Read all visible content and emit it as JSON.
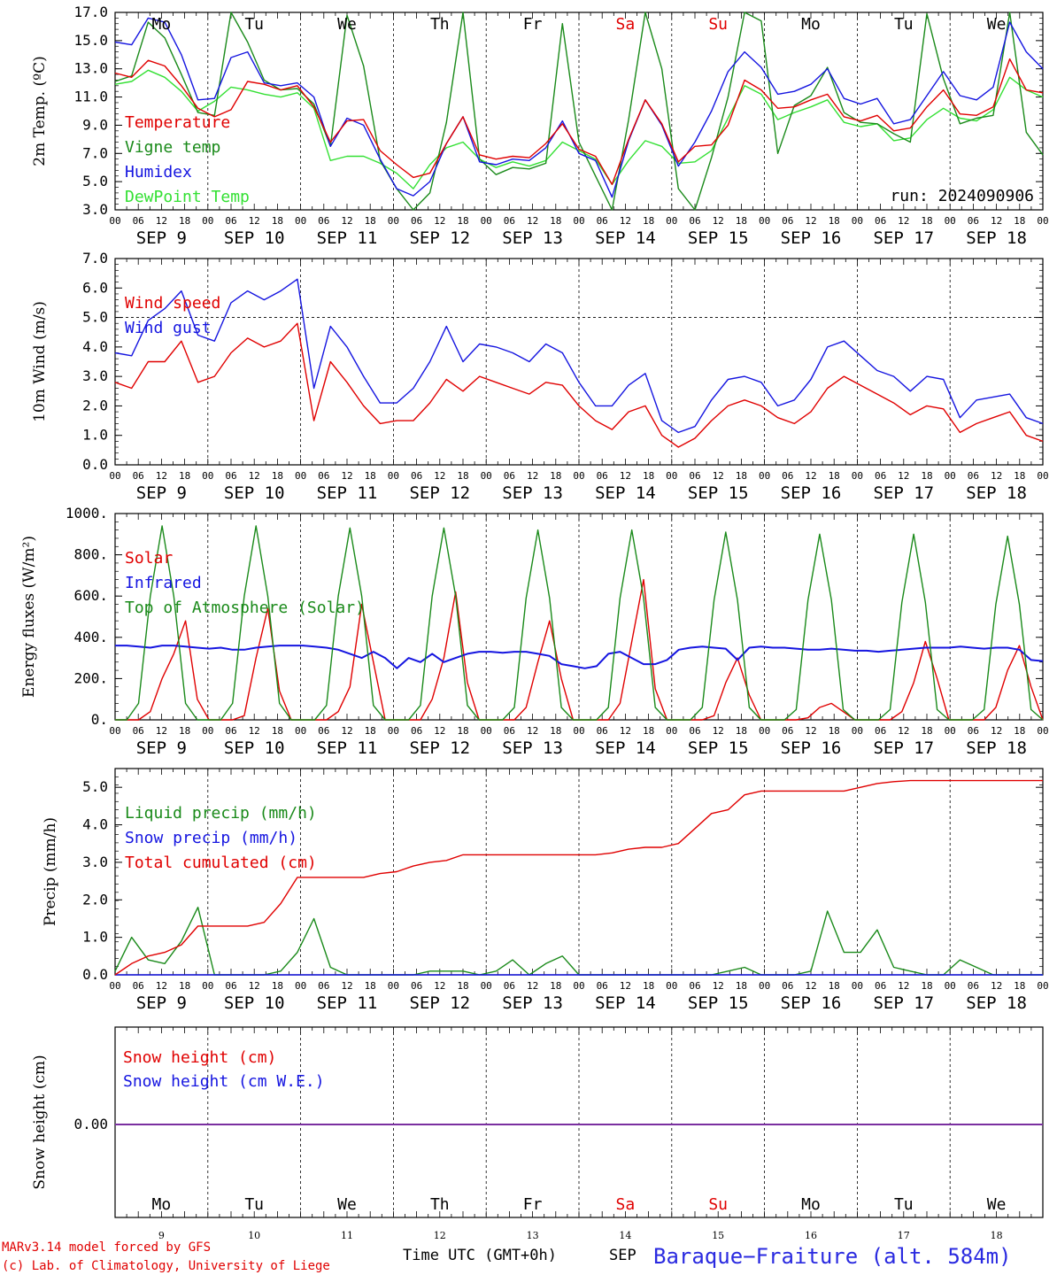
{
  "run_label": "run: 2024090906",
  "hour_ticks": [
    "00",
    "06",
    "12",
    "18"
  ],
  "final_hour": "00",
  "days": [
    {
      "abbr": "Mo",
      "date": "SEP  9",
      "num": "9",
      "weekend": false
    },
    {
      "abbr": "Tu",
      "date": "SEP 10",
      "num": "10",
      "weekend": false
    },
    {
      "abbr": "We",
      "date": "SEP 11",
      "num": "11",
      "weekend": false
    },
    {
      "abbr": "Th",
      "date": "SEP 12",
      "num": "12",
      "weekend": false
    },
    {
      "abbr": "Fr",
      "date": "SEP 13",
      "num": "13",
      "weekend": false
    },
    {
      "abbr": "Sa",
      "date": "SEP 14",
      "num": "14",
      "weekend": true
    },
    {
      "abbr": "Su",
      "date": "SEP 15",
      "num": "15",
      "weekend": true
    },
    {
      "abbr": "Mo",
      "date": "SEP 16",
      "num": "16",
      "weekend": false
    },
    {
      "abbr": "Tu",
      "date": "SEP 17",
      "num": "17",
      "weekend": false
    },
    {
      "abbr": "We",
      "date": "SEP 18",
      "num": "18",
      "weekend": false
    }
  ],
  "colors": {
    "red": "#e00000",
    "green": "#1a8a1a",
    "blue": "#1515e0",
    "lightgreen": "#33e033",
    "purple": "#7a2fa0",
    "weekend": "#e00000"
  },
  "chart_data": [
    {
      "type": "line",
      "ylabel": "2m Temp. (ºC)",
      "ylim": [
        3,
        17
      ],
      "y_ticks": [
        "3.0",
        "5.0",
        "7.0",
        "9.0",
        "11.0",
        "13.0",
        "15.0",
        "17.0"
      ],
      "x": "hours since SEP 9 00 UTC, step 6h",
      "series": [
        {
          "name": "Temperature",
          "color": "red",
          "values": [
            12.7,
            12.4,
            13.6,
            13.2,
            11.8,
            10.2,
            9.6,
            10.1,
            12.1,
            11.9,
            11.5,
            11.8,
            10.3,
            7.8,
            9.3,
            9.4,
            7.2,
            6.2,
            5.3,
            5.6,
            7.7,
            9.6,
            6.9,
            6.6,
            6.8,
            6.7,
            7.7,
            9.1,
            7.3,
            6.8,
            4.8,
            8.0,
            10.8,
            9.1,
            6.4,
            7.5,
            7.6,
            9.0,
            12.2,
            11.5,
            10.2,
            10.3,
            10.8,
            11.2,
            9.6,
            9.3,
            9.7,
            8.6,
            8.8,
            10.3,
            11.5,
            9.8,
            9.7,
            10.3,
            13.7,
            11.5,
            11.3
          ]
        },
        {
          "name": "Vigne temp",
          "color": "green",
          "values": [
            12.1,
            12.5,
            16.3,
            15.2,
            12.6,
            9.9,
            9.7,
            17.0,
            14.9,
            12.2,
            11.5,
            11.6,
            10.5,
            7.5,
            16.8,
            13.2,
            6.5,
            4.5,
            3.0,
            4.2,
            9.2,
            17.0,
            6.6,
            5.5,
            6.0,
            5.9,
            6.3,
            16.2,
            7.8,
            5.4,
            3.0,
            9.4,
            17.0,
            13.0,
            4.5,
            3.0,
            6.7,
            11.0,
            17.0,
            16.4,
            7.0,
            10.4,
            11.1,
            13.1,
            9.9,
            9.2,
            9.1,
            8.4,
            7.8,
            16.9,
            12.3,
            9.1,
            9.5,
            9.7,
            17.0,
            8.5,
            6.9
          ]
        },
        {
          "name": "Humidex",
          "color": "blue",
          "values": [
            14.9,
            14.7,
            16.6,
            16.3,
            14.0,
            10.8,
            10.9,
            13.8,
            14.2,
            12.0,
            11.8,
            12.0,
            11.0,
            7.5,
            9.5,
            9.0,
            6.6,
            4.5,
            4.0,
            5.0,
            7.7,
            9.6,
            6.4,
            6.2,
            6.6,
            6.5,
            7.4,
            9.3,
            7.0,
            6.5,
            3.9,
            7.9,
            10.8,
            9.0,
            6.1,
            7.8,
            10.0,
            12.8,
            14.2,
            13.1,
            11.2,
            11.4,
            11.9,
            13.0,
            10.9,
            10.5,
            10.9,
            9.1,
            9.4,
            11.1,
            12.8,
            11.1,
            10.8,
            11.7,
            16.3,
            14.2,
            13.0
          ]
        },
        {
          "name": "DewPoint Temp",
          "color": "lightgreen",
          "values": [
            11.9,
            12.1,
            12.9,
            12.4,
            11.4,
            10.0,
            10.7,
            11.7,
            11.5,
            11.2,
            11.0,
            11.3,
            10.2,
            6.5,
            6.8,
            6.8,
            6.3,
            5.6,
            4.5,
            6.2,
            7.4,
            7.8,
            6.6,
            6.0,
            6.4,
            6.1,
            6.5,
            7.8,
            7.2,
            6.6,
            4.8,
            6.5,
            7.9,
            7.5,
            6.3,
            6.4,
            7.2,
            9.5,
            11.8,
            11.2,
            9.4,
            9.9,
            10.3,
            10.8,
            9.2,
            8.9,
            9.1,
            7.9,
            8.1,
            9.4,
            10.2,
            9.5,
            9.3,
            10.1,
            12.4,
            11.5,
            11.0
          ]
        }
      ]
    },
    {
      "type": "line",
      "ylabel": "10m Wind (m/s)",
      "ylim": [
        0,
        7
      ],
      "y_ticks": [
        "0.0",
        "1.0",
        "2.0",
        "3.0",
        "4.0",
        "5.0",
        "6.0",
        "7.0"
      ],
      "x": "hours since SEP 9 00 UTC, step 6h",
      "series": [
        {
          "name": "Wind speed",
          "color": "red",
          "values": [
            2.8,
            2.6,
            3.5,
            3.5,
            4.2,
            2.8,
            3.0,
            3.8,
            4.3,
            4.0,
            4.2,
            4.8,
            1.5,
            3.5,
            2.8,
            2.0,
            1.4,
            1.5,
            1.5,
            2.1,
            2.9,
            2.5,
            3.0,
            2.8,
            2.6,
            2.4,
            2.8,
            2.7,
            2.0,
            1.5,
            1.2,
            1.8,
            2.0,
            1.0,
            0.6,
            0.9,
            1.5,
            2.0,
            2.2,
            2.0,
            1.6,
            1.4,
            1.8,
            2.6,
            3.0,
            2.7,
            2.4,
            2.1,
            1.7,
            2.0,
            1.9,
            1.1,
            1.4,
            1.6,
            1.8,
            1.0,
            0.8
          ]
        },
        {
          "name": "Wind gust",
          "color": "blue",
          "values": [
            3.8,
            3.7,
            4.9,
            5.3,
            5.9,
            4.4,
            4.2,
            5.5,
            5.9,
            5.6,
            5.9,
            6.3,
            2.6,
            4.7,
            4.0,
            3.0,
            2.1,
            2.1,
            2.6,
            3.5,
            4.7,
            3.5,
            4.1,
            4.0,
            3.8,
            3.5,
            4.1,
            3.8,
            2.8,
            2.0,
            2.0,
            2.7,
            3.1,
            1.5,
            1.1,
            1.3,
            2.2,
            2.9,
            3.0,
            2.8,
            2.0,
            2.2,
            2.9,
            4.0,
            4.2,
            3.7,
            3.2,
            3.0,
            2.5,
            3.0,
            2.9,
            1.6,
            2.2,
            2.3,
            2.4,
            1.6,
            1.4
          ]
        }
      ]
    },
    {
      "type": "line",
      "ylabel": "Energy fluxes (W/m²)",
      "ylim": [
        0,
        1000
      ],
      "y_ticks": [
        "0.",
        "200.",
        "400.",
        "600.",
        "800.",
        "1000."
      ],
      "x": "hours since SEP 9 00 UTC, step 3h",
      "series": [
        {
          "name": "Solar",
          "color": "red",
          "values": [
            0,
            0,
            0,
            40,
            200,
            320,
            480,
            100,
            0,
            0,
            0,
            20,
            300,
            540,
            140,
            0,
            0,
            0,
            0,
            40,
            160,
            560,
            280,
            0,
            0,
            0,
            0,
            100,
            300,
            620,
            180,
            0,
            0,
            0,
            0,
            60,
            280,
            480,
            200,
            0,
            0,
            0,
            0,
            80,
            380,
            680,
            150,
            0,
            0,
            0,
            0,
            20,
            180,
            300,
            120,
            0,
            0,
            0,
            0,
            10,
            60,
            80,
            40,
            0,
            0,
            0,
            0,
            40,
            180,
            380,
            200,
            0,
            0,
            0,
            0,
            60,
            240,
            360,
            160,
            0
          ]
        },
        {
          "name": "Infrared",
          "color": "blue",
          "values": [
            360,
            360,
            355,
            350,
            360,
            360,
            355,
            350,
            345,
            350,
            340,
            340,
            350,
            355,
            360,
            360,
            360,
            355,
            350,
            340,
            320,
            300,
            330,
            300,
            250,
            300,
            280,
            320,
            280,
            300,
            320,
            330,
            330,
            325,
            330,
            330,
            320,
            310,
            270,
            260,
            250,
            260,
            320,
            330,
            300,
            270,
            270,
            290,
            340,
            350,
            355,
            350,
            345,
            290,
            350,
            355,
            350,
            350,
            345,
            340,
            340,
            345,
            340,
            335,
            335,
            330,
            335,
            340,
            345,
            350,
            350,
            350,
            355,
            350,
            345,
            350,
            350,
            340,
            290,
            285
          ]
        },
        {
          "name": "Top of Atmosphere (Solar)",
          "color": "green",
          "values": [
            0,
            0,
            80,
            600,
            940,
            600,
            80,
            0,
            0,
            0,
            80,
            600,
            940,
            600,
            80,
            0,
            0,
            0,
            70,
            600,
            930,
            600,
            70,
            0,
            0,
            0,
            70,
            600,
            930,
            600,
            70,
            0,
            0,
            0,
            60,
            590,
            920,
            590,
            60,
            0,
            0,
            0,
            60,
            590,
            920,
            590,
            60,
            0,
            0,
            0,
            60,
            580,
            910,
            580,
            60,
            0,
            0,
            0,
            50,
            580,
            900,
            580,
            50,
            0,
            0,
            0,
            50,
            570,
            900,
            570,
            50,
            0,
            0,
            0,
            50,
            560,
            890,
            560,
            50,
            0
          ]
        }
      ]
    },
    {
      "type": "line",
      "ylabel": "Precip (mm/h)",
      "ylim": [
        0,
        5.5
      ],
      "y_ticks": [
        "0.0",
        "1.0",
        "2.0",
        "3.0",
        "4.0",
        "5.0"
      ],
      "x": "hours since SEP 9 00 UTC, step 6h",
      "series": [
        {
          "name": "Liquid precip (mm/h)",
          "color": "green",
          "values": [
            0.1,
            1.0,
            0.4,
            0.3,
            0.9,
            1.8,
            0.0,
            0.0,
            0.0,
            0.0,
            0.1,
            0.6,
            1.5,
            0.2,
            0.0,
            0.0,
            0.0,
            0.0,
            0.0,
            0.1,
            0.1,
            0.1,
            0.0,
            0.1,
            0.4,
            0.0,
            0.3,
            0.5,
            0.0,
            0.0,
            0.0,
            0.0,
            0.0,
            0.0,
            0.0,
            0.0,
            0.0,
            0.1,
            0.2,
            0.0,
            0.0,
            0.0,
            0.1,
            1.7,
            0.6,
            0.6,
            1.2,
            0.2,
            0.1,
            0.0,
            0.0,
            0.4,
            0.2,
            0.0,
            0.0,
            0.0,
            0.0
          ]
        },
        {
          "name": "Snow precip (mm/h)",
          "color": "blue",
          "values": [
            0,
            0,
            0,
            0,
            0,
            0,
            0,
            0,
            0,
            0,
            0,
            0,
            0,
            0,
            0,
            0,
            0,
            0,
            0,
            0,
            0,
            0,
            0,
            0,
            0,
            0,
            0,
            0,
            0,
            0,
            0,
            0,
            0,
            0,
            0,
            0,
            0,
            0,
            0,
            0,
            0,
            0,
            0,
            0,
            0,
            0,
            0,
            0,
            0,
            0,
            0,
            0,
            0,
            0,
            0,
            0,
            0
          ]
        },
        {
          "name": "Total cumulated (cm)",
          "color": "red",
          "values": [
            0.0,
            0.3,
            0.5,
            0.6,
            0.8,
            1.3,
            1.3,
            1.3,
            1.3,
            1.4,
            1.9,
            2.6,
            2.6,
            2.6,
            2.6,
            2.6,
            2.7,
            2.75,
            2.9,
            3.0,
            3.05,
            3.2,
            3.2,
            3.2,
            3.2,
            3.2,
            3.2,
            3.2,
            3.2,
            3.2,
            3.25,
            3.35,
            3.4,
            3.4,
            3.5,
            3.9,
            4.3,
            4.4,
            4.8,
            4.9,
            4.9,
            4.9,
            4.9,
            4.9,
            4.9,
            5.0,
            5.1,
            5.15,
            5.18,
            5.18,
            5.18,
            5.18,
            5.18,
            5.18,
            5.18,
            5.18,
            5.18
          ]
        }
      ]
    },
    {
      "type": "line",
      "ylabel": "Snow height (cm)",
      "y_ticks": [
        "0.00"
      ],
      "x": "hours since SEP 9 00 UTC, step 6h",
      "series": [
        {
          "name": "Snow height (cm)",
          "color": "red",
          "values": [
            0,
            0
          ]
        },
        {
          "name": "Snow height (cm W.E.)",
          "color": "blue",
          "values": [
            0,
            0
          ]
        }
      ]
    }
  ],
  "footer": {
    "credit1": "MARv3.14 model forced by GFS",
    "credit2": "(c) Lab. of Climatology, University of Liege",
    "xtitle": "Time UTC (GMT+0h)",
    "month": "SEP",
    "station": "Baraque−Fraiture (alt. 584m)"
  }
}
